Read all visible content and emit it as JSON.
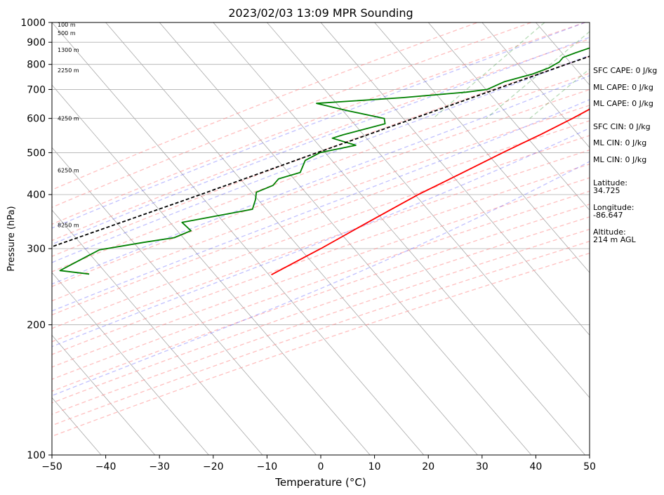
{
  "chart_data": {
    "type": "line",
    "title": "2023/02/03 13:09 MPR Sounding",
    "xlabel": "Temperature (°C)",
    "ylabel": "Pressure (hPa)",
    "xlim": [
      -50,
      50
    ],
    "ylim": [
      1000,
      100
    ],
    "y_scale": "log",
    "grid": true,
    "x_ticks": [
      -50,
      -40,
      -30,
      -20,
      -10,
      0,
      10,
      20,
      30,
      40,
      50
    ],
    "y_ticks": [
      100,
      200,
      300,
      400,
      500,
      600,
      700,
      800,
      900,
      1000
    ],
    "isotherms": [
      -110,
      -100,
      -90,
      -80,
      -70,
      -60,
      -50,
      -40,
      -30,
      -20,
      -10,
      0,
      10,
      20,
      30,
      40,
      50
    ],
    "dry_adiabats_c": [
      -40,
      -30,
      -20,
      -10,
      0,
      10,
      20,
      30,
      40,
      50,
      60,
      70,
      80,
      90,
      100,
      110,
      120,
      130,
      140
    ],
    "moist_adiabats_c": [
      -20,
      -12,
      -4,
      4,
      12,
      20,
      28
    ],
    "mixing_ratios_gkg": [
      0.4,
      1,
      2,
      4,
      7,
      10,
      16,
      24,
      32
    ],
    "series": [
      {
        "name": "temperature",
        "color": "#ff0000",
        "points": [
          [
            1000,
            0.0
          ],
          [
            985,
            -0.5
          ],
          [
            970,
            -1.6
          ],
          [
            950,
            -2.9
          ],
          [
            930,
            -3.8
          ],
          [
            900,
            -3.8
          ],
          [
            870,
            -3.0
          ],
          [
            850,
            -2.6
          ],
          [
            800,
            -1.5
          ],
          [
            750,
            -1.6
          ],
          [
            700,
            -2.5
          ],
          [
            650,
            -4.2
          ],
          [
            600,
            -7.0
          ],
          [
            550,
            -10.4
          ],
          [
            500,
            -14.5
          ],
          [
            450,
            -18.7
          ],
          [
            400,
            -23.5
          ],
          [
            350,
            -28.0
          ],
          [
            300,
            -33.0
          ],
          [
            280,
            -35.5
          ],
          [
            261,
            -38.0
          ]
        ]
      },
      {
        "name": "dewpoint",
        "color": "#008000",
        "points": [
          [
            1000,
            -5.0
          ],
          [
            990,
            -6.0
          ],
          [
            970,
            -7.0
          ],
          [
            950,
            -8.2
          ],
          [
            920,
            -9.2
          ],
          [
            900,
            -11.5
          ],
          [
            880,
            -14.5
          ],
          [
            850,
            -17.0
          ],
          [
            830,
            -18.5
          ],
          [
            810,
            -18.5
          ],
          [
            785,
            -19.5
          ],
          [
            760,
            -21.5
          ],
          [
            730,
            -25.5
          ],
          [
            700,
            -27.5
          ],
          [
            690,
            -31.0
          ],
          [
            670,
            -42.0
          ],
          [
            650,
            -57.0
          ],
          [
            625,
            -50.0
          ],
          [
            600,
            -42.0
          ],
          [
            583,
            -41.0
          ],
          [
            550,
            -47.0
          ],
          [
            540,
            -48.5
          ],
          [
            520,
            -43.0
          ],
          [
            500,
            -48.5
          ],
          [
            480,
            -50.0
          ],
          [
            450,
            -49.0
          ],
          [
            435,
            -52.0
          ],
          [
            420,
            -52.0
          ],
          [
            405,
            -54.0
          ],
          [
            390,
            -53.0
          ],
          [
            370,
            -52.0
          ],
          [
            345,
            -63.0
          ],
          [
            330,
            -60.0
          ],
          [
            318,
            -62.0
          ],
          [
            310,
            -67.0
          ],
          [
            298,
            -74.0
          ],
          [
            267,
            -78.0
          ],
          [
            262,
            -72.0
          ]
        ]
      },
      {
        "name": "parcel",
        "color": "#000000",
        "style": "dashed",
        "points": [
          [
            1000,
            0.0
          ],
          [
            970,
            -2.6
          ],
          [
            950,
            -4.2
          ],
          [
            900,
            -8.6
          ],
          [
            850,
            -12.5
          ],
          [
            800,
            -16.8
          ],
          [
            700,
            -26.0
          ],
          [
            600,
            -36.5
          ],
          [
            500,
            -49.0
          ],
          [
            400,
            -64.0
          ],
          [
            300,
            -84.0
          ]
        ]
      }
    ],
    "height_labels": [
      {
        "label": "100 m",
        "p": 988
      },
      {
        "label": "500 m",
        "p": 945
      },
      {
        "label": "1300 m",
        "p": 865
      },
      {
        "label": "2250 m",
        "p": 775
      },
      {
        "label": "4250 m",
        "p": 600
      },
      {
        "label": "6250 m",
        "p": 455
      },
      {
        "label": "8250 m",
        "p": 340
      }
    ]
  },
  "indices": {
    "sfc_cape": "SFC CAPE: 0 J/kg",
    "ml_cape_1": "ML CAPE: 0 J/kg",
    "ml_cape_2": "ML CAPE: 0 J/kg",
    "sfc_cin": "SFC CIN: 0 J/kg",
    "ml_cin_1": "ML CIN: 0 J/kg",
    "ml_cin_2": "ML CIN: 0 J/kg",
    "latitude_label": "Latitude:",
    "latitude_value": "34.725",
    "longitude_label": "Longitude:",
    "longitude_value": "-86.647",
    "altitude_label": "Altitude:",
    "altitude_value": "214 m AGL"
  }
}
